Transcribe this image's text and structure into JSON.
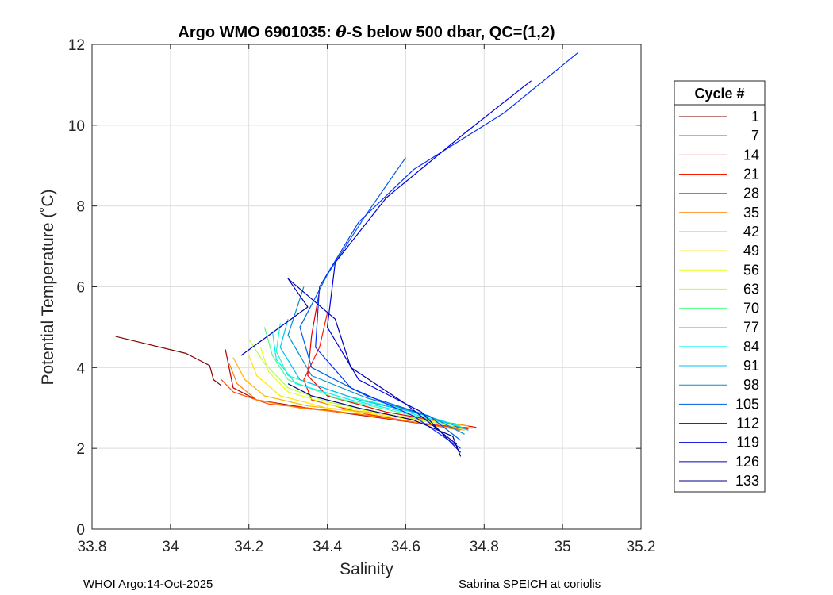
{
  "chart_data": {
    "type": "line",
    "title": {
      "prefix": "Argo WMO 6901035: ",
      "theta": "θ",
      "suffix": "-S below 500 dbar,  QC=(1,2)"
    },
    "xlabel": "Salinity",
    "ylabel": "Potential Temperature (˚C)",
    "xlim": [
      33.8,
      35.2
    ],
    "ylim": [
      0,
      12
    ],
    "x_ticks": [
      {
        "value": 33.8,
        "label": "33.8"
      },
      {
        "value": 34.0,
        "label": "34"
      },
      {
        "value": 34.2,
        "label": "34.2"
      },
      {
        "value": 34.4,
        "label": "34.4"
      },
      {
        "value": 34.6,
        "label": "34.6"
      },
      {
        "value": 34.8,
        "label": "34.8"
      },
      {
        "value": 35.0,
        "label": "35"
      },
      {
        "value": 35.2,
        "label": "35.2"
      }
    ],
    "y_ticks": [
      {
        "value": 0,
        "label": "0"
      },
      {
        "value": 2,
        "label": "2"
      },
      {
        "value": 4,
        "label": "4"
      },
      {
        "value": 6,
        "label": "6"
      },
      {
        "value": 8,
        "label": "8"
      },
      {
        "value": 10,
        "label": "10"
      },
      {
        "value": 12,
        "label": "12"
      }
    ],
    "grid": true,
    "legend": {
      "title": "Cycle #",
      "placement": "outside-right",
      "entries": [
        {
          "label": "1",
          "color": "#800000"
        },
        {
          "label": "7",
          "color": "#b30000"
        },
        {
          "label": "14",
          "color": "#e60000"
        },
        {
          "label": "21",
          "color": "#ff1a00"
        },
        {
          "label": "28",
          "color": "#ff4d00"
        },
        {
          "label": "35",
          "color": "#ff8000"
        },
        {
          "label": "42",
          "color": "#ffb300"
        },
        {
          "label": "49",
          "color": "#ffe600"
        },
        {
          "label": "56",
          "color": "#e6ff19"
        },
        {
          "label": "63",
          "color": "#b3ff4d"
        },
        {
          "label": "70",
          "color": "#4dff80"
        },
        {
          "label": "77",
          "color": "#19ffc0"
        },
        {
          "label": "84",
          "color": "#00f0ff"
        },
        {
          "label": "91",
          "color": "#00c0f0"
        },
        {
          "label": "98",
          "color": "#008fd0"
        },
        {
          "label": "105",
          "color": "#0060e0"
        },
        {
          "label": "112",
          "color": "#0030ff"
        },
        {
          "label": "119",
          "color": "#0000e0"
        },
        {
          "label": "126",
          "color": "#0000b0"
        },
        {
          "label": "133",
          "color": "#000080"
        }
      ]
    },
    "series": [
      {
        "color": "#800000",
        "points": [
          [
            33.86,
            4.77
          ],
          [
            33.95,
            4.56
          ],
          [
            34.04,
            4.35
          ],
          [
            34.1,
            4.05
          ],
          [
            34.11,
            3.7
          ],
          [
            34.13,
            3.55
          ]
        ]
      },
      {
        "color": "#b30000",
        "points": [
          [
            34.14,
            4.45
          ],
          [
            34.16,
            3.5
          ],
          [
            34.22,
            3.2
          ],
          [
            34.35,
            3.0
          ],
          [
            34.5,
            2.8
          ],
          [
            34.65,
            2.6
          ],
          [
            34.77,
            2.5
          ]
        ]
      },
      {
        "color": "#e60000",
        "points": [
          [
            34.38,
            5.9
          ],
          [
            34.36,
            4.8
          ],
          [
            34.35,
            3.8
          ],
          [
            34.4,
            3.3
          ],
          [
            34.55,
            2.9
          ],
          [
            34.7,
            2.65
          ],
          [
            34.78,
            2.52
          ]
        ]
      },
      {
        "color": "#ff1a00",
        "points": [
          [
            34.4,
            5.35
          ],
          [
            34.38,
            4.5
          ],
          [
            34.34,
            3.7
          ],
          [
            34.36,
            3.2
          ],
          [
            34.5,
            2.85
          ],
          [
            34.65,
            2.6
          ],
          [
            34.76,
            2.48
          ]
        ]
      },
      {
        "color": "#ff4d00",
        "points": [
          [
            34.13,
            3.7
          ],
          [
            34.16,
            3.4
          ],
          [
            34.25,
            3.1
          ],
          [
            34.4,
            2.95
          ],
          [
            34.55,
            2.75
          ],
          [
            34.7,
            2.55
          ],
          [
            34.75,
            2.45
          ]
        ]
      },
      {
        "color": "#ff8000",
        "points": [
          [
            34.15,
            4.1
          ],
          [
            34.17,
            3.6
          ],
          [
            34.22,
            3.2
          ],
          [
            34.33,
            3.0
          ],
          [
            34.48,
            2.85
          ],
          [
            34.62,
            2.65
          ],
          [
            34.74,
            2.45
          ]
        ]
      },
      {
        "color": "#ffb300",
        "points": [
          [
            34.16,
            4.25
          ],
          [
            34.19,
            3.7
          ],
          [
            34.24,
            3.3
          ],
          [
            34.35,
            3.05
          ],
          [
            34.5,
            2.9
          ],
          [
            34.66,
            2.7
          ],
          [
            34.76,
            2.55
          ]
        ]
      },
      {
        "color": "#ffe600",
        "points": [
          [
            34.2,
            4.3
          ],
          [
            34.22,
            3.8
          ],
          [
            34.28,
            3.3
          ],
          [
            34.4,
            3.0
          ],
          [
            34.55,
            2.8
          ],
          [
            34.7,
            2.6
          ]
        ]
      },
      {
        "color": "#e6ff19",
        "points": [
          [
            34.23,
            4.5
          ],
          [
            34.25,
            3.9
          ],
          [
            34.3,
            3.4
          ],
          [
            34.42,
            3.05
          ],
          [
            34.58,
            2.8
          ],
          [
            34.72,
            2.55
          ]
        ]
      },
      {
        "color": "#b3ff4d",
        "points": [
          [
            34.2,
            4.7
          ],
          [
            34.24,
            4.1
          ],
          [
            34.3,
            3.5
          ],
          [
            34.4,
            3.15
          ],
          [
            34.55,
            2.85
          ],
          [
            34.7,
            2.6
          ],
          [
            34.75,
            2.45
          ]
        ]
      },
      {
        "color": "#4dff80",
        "points": [
          [
            34.24,
            5.0
          ],
          [
            34.26,
            4.3
          ],
          [
            34.3,
            3.7
          ],
          [
            34.42,
            3.25
          ],
          [
            34.58,
            2.9
          ],
          [
            34.72,
            2.6
          ]
        ]
      },
      {
        "color": "#19ffc0",
        "points": [
          [
            34.28,
            5.1
          ],
          [
            34.27,
            4.4
          ],
          [
            34.3,
            3.8
          ],
          [
            34.45,
            3.3
          ],
          [
            34.6,
            2.95
          ],
          [
            34.74,
            2.55
          ]
        ]
      },
      {
        "color": "#00f0ff",
        "points": [
          [
            34.26,
            4.9
          ],
          [
            34.27,
            4.2
          ],
          [
            34.32,
            3.6
          ],
          [
            34.46,
            3.2
          ],
          [
            34.62,
            2.85
          ],
          [
            34.75,
            2.5
          ]
        ]
      },
      {
        "color": "#00c0f0",
        "points": [
          [
            34.3,
            5.2
          ],
          [
            34.28,
            4.5
          ],
          [
            34.33,
            3.7
          ],
          [
            34.48,
            3.2
          ],
          [
            34.64,
            2.85
          ],
          [
            34.76,
            2.45
          ]
        ]
      },
      {
        "color": "#008fd0",
        "points": [
          [
            34.34,
            6.0
          ],
          [
            34.3,
            4.8
          ],
          [
            34.36,
            3.8
          ],
          [
            34.5,
            3.25
          ],
          [
            34.66,
            2.8
          ],
          [
            34.75,
            2.35
          ]
        ]
      },
      {
        "color": "#0060e0",
        "points": [
          [
            34.6,
            9.2
          ],
          [
            34.5,
            7.8
          ],
          [
            34.4,
            6.3
          ],
          [
            34.33,
            5.0
          ],
          [
            34.36,
            4.0
          ],
          [
            34.5,
            3.3
          ],
          [
            34.66,
            2.8
          ],
          [
            34.74,
            2.2
          ]
        ]
      },
      {
        "color": "#0030ff",
        "points": [
          [
            35.04,
            11.8
          ],
          [
            34.85,
            10.3
          ],
          [
            34.62,
            8.9
          ],
          [
            34.48,
            7.6
          ],
          [
            34.38,
            6.0
          ],
          [
            34.37,
            4.5
          ],
          [
            34.46,
            3.5
          ],
          [
            34.62,
            2.8
          ],
          [
            34.74,
            2.0
          ]
        ]
      },
      {
        "color": "#0000e0",
        "points": [
          [
            34.92,
            11.1
          ],
          [
            34.75,
            9.8
          ],
          [
            34.55,
            8.2
          ],
          [
            34.42,
            6.6
          ],
          [
            34.4,
            5.0
          ],
          [
            34.48,
            3.7
          ],
          [
            34.64,
            2.9
          ],
          [
            34.74,
            1.9
          ]
        ]
      },
      {
        "color": "#0000b0",
        "points": [
          [
            34.18,
            4.3
          ],
          [
            34.35,
            5.5
          ],
          [
            34.3,
            6.2
          ],
          [
            34.42,
            5.2
          ],
          [
            34.46,
            4.0
          ],
          [
            34.6,
            3.1
          ],
          [
            34.73,
            2.1
          ]
        ]
      },
      {
        "color": "#000080",
        "points": [
          [
            34.3,
            3.6
          ],
          [
            34.36,
            3.3
          ],
          [
            34.48,
            3.0
          ],
          [
            34.62,
            2.7
          ],
          [
            34.72,
            2.3
          ],
          [
            34.74,
            1.8
          ]
        ]
      }
    ]
  },
  "footer": {
    "left": "WHOI Argo:14-Oct-2025",
    "right": "Sabrina SPEICH at coriolis"
  }
}
